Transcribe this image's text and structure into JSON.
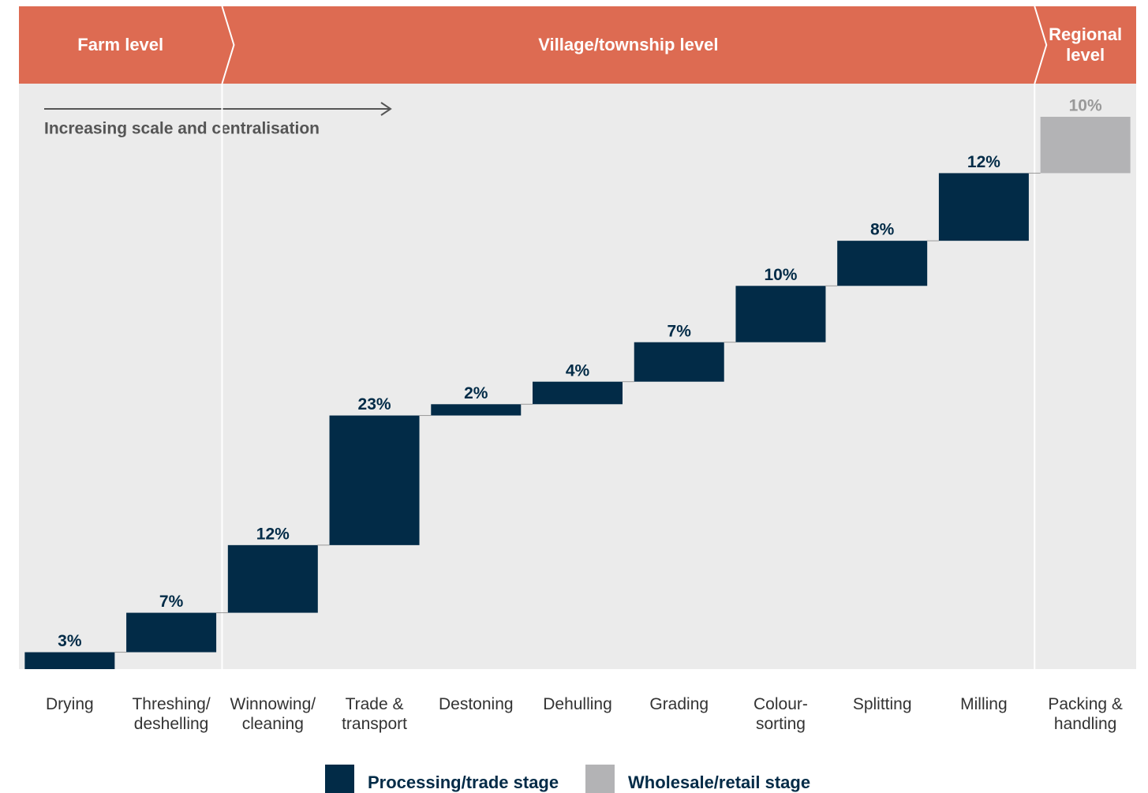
{
  "chart_data": {
    "type": "waterfall",
    "levels": [
      "Farm level",
      "Village/township level",
      "Regional\nlevel"
    ],
    "annotation": "Increasing scale and centralisation",
    "categories": [
      "Drying",
      "Threshing/\ndeshelling",
      "Winnowing/\ncleaning",
      "Trade &\ntransport",
      "Destoning",
      "Dehulling",
      "Grading",
      "Colour-\nsorting",
      "Splitting",
      "Milling",
      "Packing &\nhandling"
    ],
    "series": [
      {
        "name": "Processing/trade stage",
        "color": "#022b47",
        "values": [
          3,
          7,
          12,
          23,
          2,
          4,
          7,
          10,
          8,
          12,
          null
        ],
        "value_labels": [
          "3%",
          "7%",
          "12%",
          "23%",
          "2%",
          "4%",
          "7%",
          "10%",
          "8%",
          "12%",
          null
        ]
      },
      {
        "name": "Wholesale/retail stage",
        "color": "#b3b3b5",
        "values": [
          null,
          null,
          null,
          null,
          null,
          null,
          null,
          null,
          null,
          null,
          10
        ],
        "value_labels": [
          null,
          null,
          null,
          null,
          null,
          null,
          null,
          null,
          null,
          null,
          "10%"
        ]
      }
    ]
  }
}
